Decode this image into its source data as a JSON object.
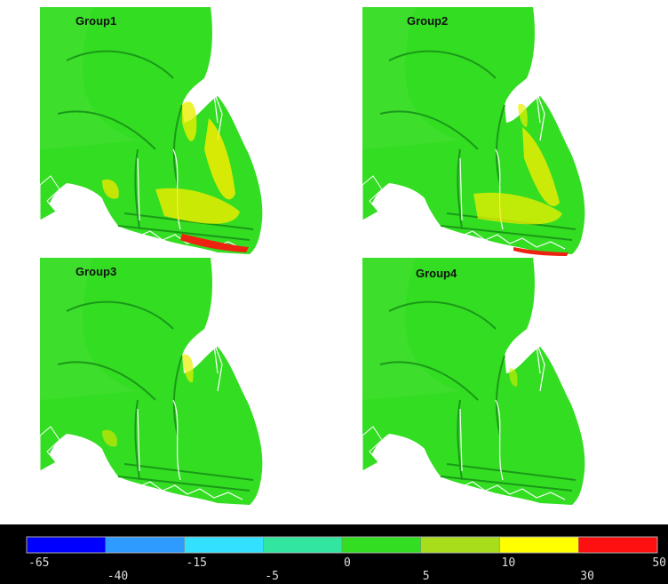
{
  "panels": [
    {
      "label": "Group1"
    },
    {
      "label": "Group2"
    },
    {
      "label": "Group3"
    },
    {
      "label": "Group4"
    }
  ],
  "colorbar": {
    "ticks": [
      -65,
      -40,
      -15,
      -5,
      0,
      5,
      10,
      30,
      50
    ],
    "colors": [
      "#0000ff",
      "#2d9bff",
      "#33e0ff",
      "#33e6a0",
      "#33dd22",
      "#a8dd1c",
      "#ffff00",
      "#ff1010"
    ]
  }
}
